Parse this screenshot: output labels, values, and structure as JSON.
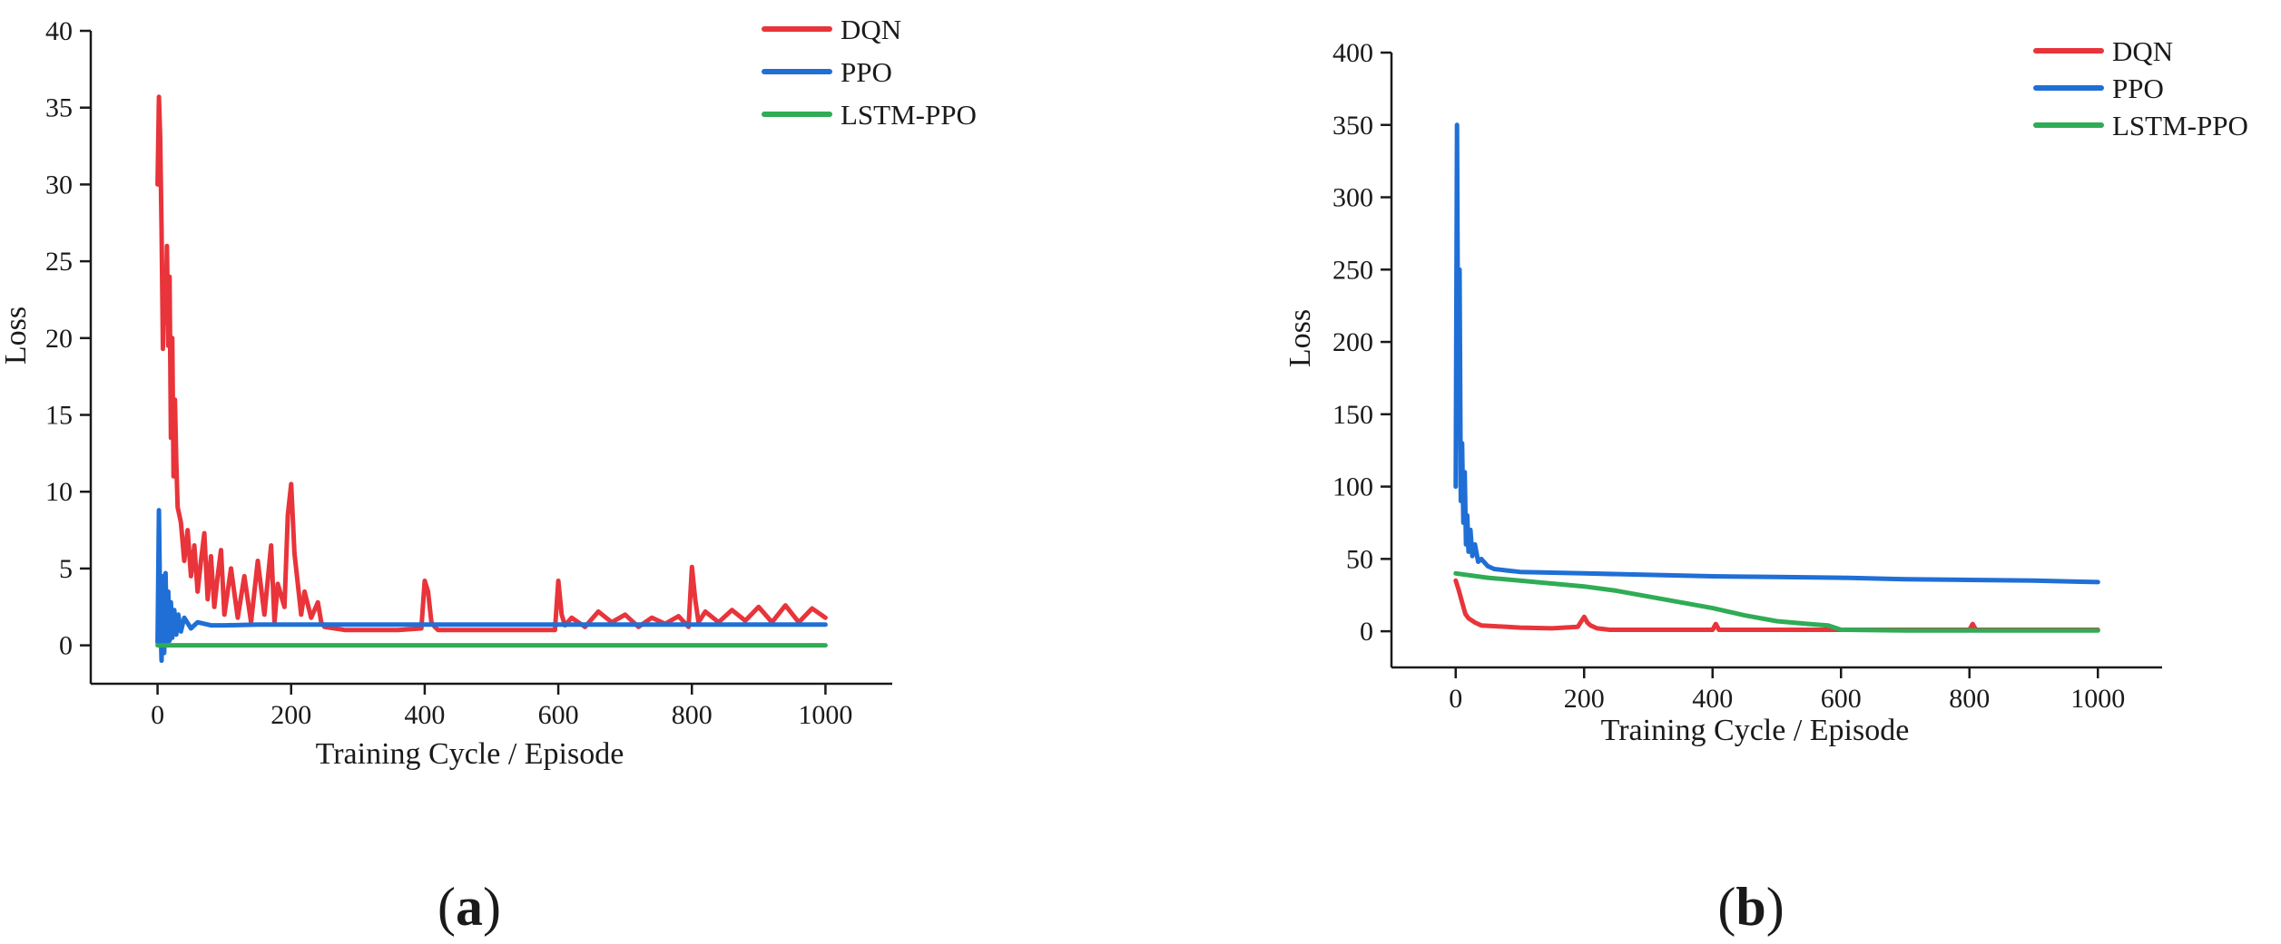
{
  "chart_data": [
    {
      "type": "line",
      "panel": "(a)",
      "panel_letter": "a",
      "xlabel": "Training Cycle / Episode",
      "ylabel": "Loss",
      "xlim": [
        -100,
        1100
      ],
      "ylim": [
        -2.5,
        40
      ],
      "xticks": [
        0,
        200,
        400,
        600,
        800,
        1000
      ],
      "yticks": [
        0,
        5,
        10,
        15,
        20,
        25,
        30,
        35,
        40
      ],
      "legend": "top-right",
      "series": [
        {
          "name": "DQN",
          "color": "#e8343a",
          "x": [
            0,
            2,
            4,
            6,
            8,
            10,
            12,
            14,
            16,
            18,
            20,
            22,
            24,
            26,
            28,
            30,
            35,
            40,
            45,
            50,
            55,
            60,
            65,
            70,
            75,
            80,
            85,
            90,
            95,
            100,
            110,
            120,
            130,
            140,
            150,
            160,
            170,
            175,
            180,
            190,
            195,
            200,
            205,
            210,
            215,
            220,
            230,
            240,
            245,
            250,
            280,
            320,
            360,
            395,
            400,
            405,
            410,
            415,
            420,
            460,
            520,
            560,
            595,
            600,
            605,
            610,
            620,
            640,
            660,
            680,
            700,
            720,
            740,
            760,
            780,
            795,
            800,
            805,
            810,
            820,
            840,
            860,
            880,
            900,
            920,
            940,
            960,
            980,
            1000
          ],
          "values": [
            30,
            35.7,
            33,
            27,
            19.3,
            24,
            21,
            26,
            19.5,
            24,
            13.5,
            20,
            11,
            16,
            12,
            9,
            8,
            5.5,
            7.5,
            4.5,
            6.5,
            3.5,
            5.5,
            7.3,
            3,
            5.8,
            2.5,
            4.5,
            6.2,
            2,
            5,
            1.8,
            4.5,
            1.5,
            5.5,
            2,
            6.5,
            1.5,
            4,
            2.5,
            8.5,
            10.5,
            6,
            4,
            2,
            3.5,
            1.8,
            2.8,
            1.5,
            1.2,
            1,
            1,
            1,
            1.1,
            4.2,
            3.5,
            1.5,
            1.2,
            1,
            1,
            1,
            1,
            1,
            4.2,
            2,
            1.3,
            1.8,
            1.2,
            2.2,
            1.5,
            2,
            1.2,
            1.8,
            1.4,
            1.9,
            1.2,
            5.1,
            3,
            1.5,
            2.2,
            1.5,
            2.3,
            1.6,
            2.5,
            1.5,
            2.6,
            1.5,
            2.4,
            1.8
          ]
        },
        {
          "name": "PPO",
          "color": "#1f6fd6",
          "x": [
            0,
            2,
            4,
            6,
            8,
            10,
            12,
            14,
            16,
            18,
            20,
            22,
            25,
            28,
            31,
            35,
            40,
            50,
            60,
            80,
            100,
            150,
            200,
            300,
            400,
            500,
            600,
            700,
            800,
            900,
            1000
          ],
          "values": [
            0.2,
            8.8,
            2,
            -1,
            4.5,
            -0.5,
            4.7,
            0,
            3.5,
            0.3,
            2.8,
            0.5,
            2.3,
            0.7,
            2,
            0.9,
            1.8,
            1.1,
            1.5,
            1.3,
            1.3,
            1.35,
            1.35,
            1.35,
            1.35,
            1.35,
            1.35,
            1.35,
            1.35,
            1.35,
            1.35
          ]
        },
        {
          "name": "LSTM-PPO",
          "color": "#2fac55",
          "x": [
            0,
            1000
          ],
          "values": [
            0,
            0
          ]
        }
      ]
    },
    {
      "type": "line",
      "panel": "(b)",
      "panel_letter": "b",
      "xlabel": "Training Cycle / Episode",
      "ylabel": "Loss",
      "xlim": [
        -100,
        1100
      ],
      "ylim": [
        -25,
        400
      ],
      "xticks": [
        0,
        200,
        400,
        600,
        800,
        1000
      ],
      "yticks": [
        0,
        50,
        100,
        150,
        200,
        250,
        300,
        350,
        400
      ],
      "legend": "top-right",
      "series": [
        {
          "name": "DQN",
          "color": "#e8343a",
          "x": [
            0,
            5,
            10,
            15,
            20,
            30,
            40,
            60,
            80,
            100,
            150,
            190,
            200,
            205,
            210,
            220,
            240,
            300,
            400,
            405,
            410,
            500,
            600,
            700,
            800,
            805,
            810,
            900,
            1000
          ],
          "values": [
            35,
            28,
            20,
            12,
            9,
            6,
            4,
            3.5,
            3,
            2.5,
            2,
            3,
            10,
            6,
            4,
            2,
            1,
            1,
            1,
            5,
            1,
            1,
            1,
            1,
            1,
            5,
            1,
            1,
            1
          ]
        },
        {
          "name": "PPO",
          "color": "#1f6fd6",
          "x": [
            0,
            2,
            4,
            6,
            8,
            10,
            12,
            14,
            16,
            18,
            20,
            23,
            26,
            30,
            35,
            40,
            50,
            60,
            80,
            100,
            200,
            300,
            400,
            500,
            600,
            700,
            800,
            900,
            1000
          ],
          "values": [
            100,
            350,
            150,
            250,
            90,
            130,
            75,
            110,
            60,
            80,
            55,
            70,
            52,
            60,
            48,
            50,
            45,
            43,
            42,
            41,
            40,
            39,
            38,
            37.5,
            37,
            36,
            35.5,
            35,
            34
          ]
        },
        {
          "name": "LSTM-PPO",
          "color": "#2fac55",
          "x": [
            0,
            50,
            100,
            150,
            200,
            250,
            300,
            350,
            400,
            450,
            500,
            550,
            580,
            600,
            700,
            800,
            900,
            1000
          ],
          "values": [
            40,
            37,
            35,
            33,
            31,
            28,
            24,
            20,
            16,
            11,
            7,
            5,
            4,
            1,
            0.5,
            0.5,
            0.5,
            0.5
          ]
        }
      ]
    }
  ]
}
